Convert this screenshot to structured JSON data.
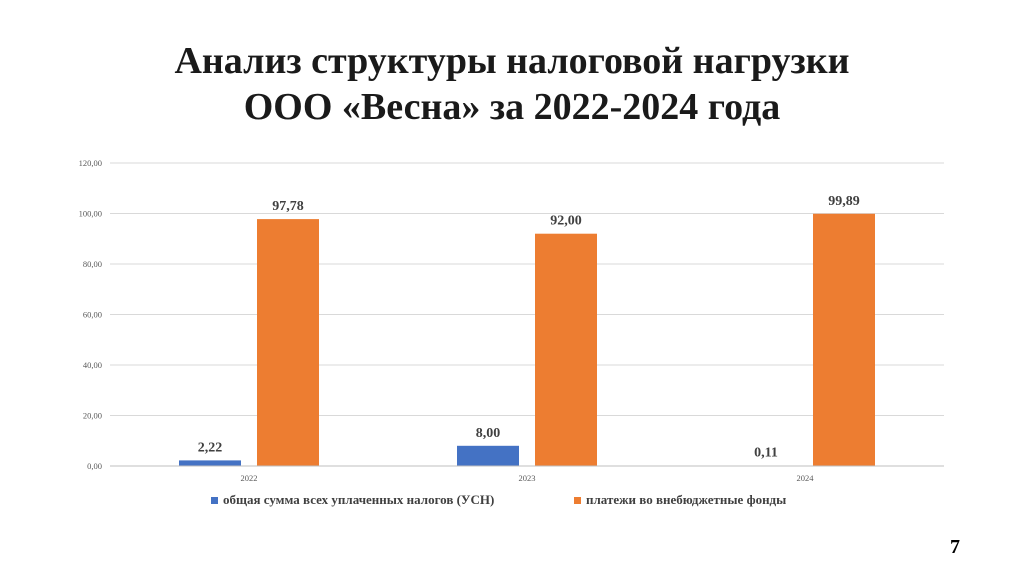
{
  "slide": {
    "title_line1": "Анализ структуры налоговой нагрузки",
    "title_line2": "ООО «Весна» за 2022-2024 года",
    "page_number": "7"
  },
  "chart_data": {
    "type": "bar",
    "title": "",
    "xlabel": "",
    "ylabel": "",
    "categories": [
      "2022",
      "2023",
      "2024"
    ],
    "series": [
      {
        "name": "общая сумма всех уплаченных налогов (УСН)",
        "values": [
          2.22,
          8.0,
          0.11
        ],
        "labels": [
          "2,22",
          "8,00",
          "0,11"
        ],
        "color": "#4472c4"
      },
      {
        "name": "платежи во внебюджетные фонды",
        "values": [
          97.78,
          92.0,
          99.89
        ],
        "labels": [
          "97,78",
          "92,00",
          "99,89"
        ],
        "color": "#ed7d31"
      }
    ],
    "ylim": [
      0,
      120
    ],
    "yticks": [
      0,
      20,
      40,
      60,
      80,
      100,
      120
    ],
    "ytick_labels": [
      "0,00",
      "20,00",
      "40,00",
      "60,00",
      "80,00",
      "100,00",
      "120,00"
    ],
    "grid": true,
    "legend_position": "bottom"
  }
}
